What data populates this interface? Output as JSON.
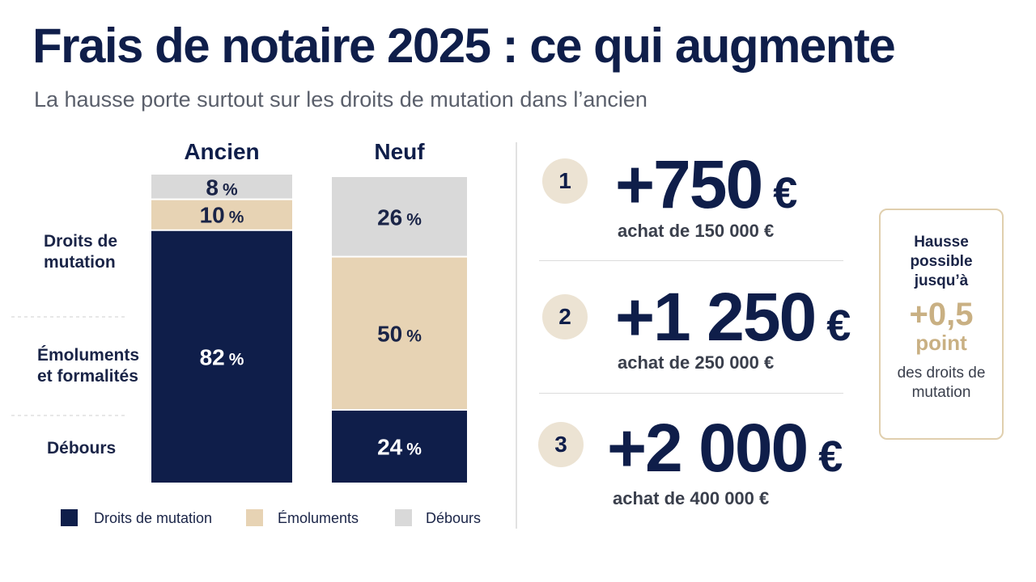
{
  "header": {
    "title": "Frais de notaire 2025 : ce qui augmente",
    "subtitle": "La hausse porte surtout sur les droits de mutation dans l’ancien"
  },
  "chart_data": {
    "type": "bar",
    "stacked": true,
    "categories": [
      "Ancien",
      "Neuf"
    ],
    "unit": "%",
    "ylim": [
      0,
      100
    ],
    "series": [
      {
        "name": "Droits de mutation",
        "values": [
          82,
          24
        ],
        "color": "#0f1e4a",
        "label_color": "#ffffff"
      },
      {
        "name": "Émoluments",
        "values": [
          10,
          50
        ],
        "color": "#e7d3b4",
        "label_color": "#1a2447"
      },
      {
        "name": "Débours",
        "values": [
          8,
          26
        ],
        "color": "#d9d9d9",
        "label_color": "#1a2447"
      }
    ],
    "row_labels": [
      {
        "lines": [
          "Droits de",
          "mutation"
        ]
      },
      {
        "lines": [
          "Émoluments",
          "et formalités"
        ]
      },
      {
        "lines": [
          "Débours"
        ]
      }
    ],
    "legend": {
      "position": "bottom"
    }
  },
  "highlights": [
    {
      "index": "1",
      "value": "+750",
      "currency": "€",
      "caption": "achat de 150 000 €"
    },
    {
      "index": "2",
      "value": "+1 250",
      "currency": "€",
      "caption": "achat de 250 000 €"
    },
    {
      "index": "3",
      "value": "+2 000",
      "currency": "€",
      "caption": "achat de 400 000 €"
    }
  ],
  "side_note": {
    "intro": "Hausse possible jusqu’à",
    "value": "+0,5",
    "unit": "point",
    "outro": "des droits de mutation"
  }
}
